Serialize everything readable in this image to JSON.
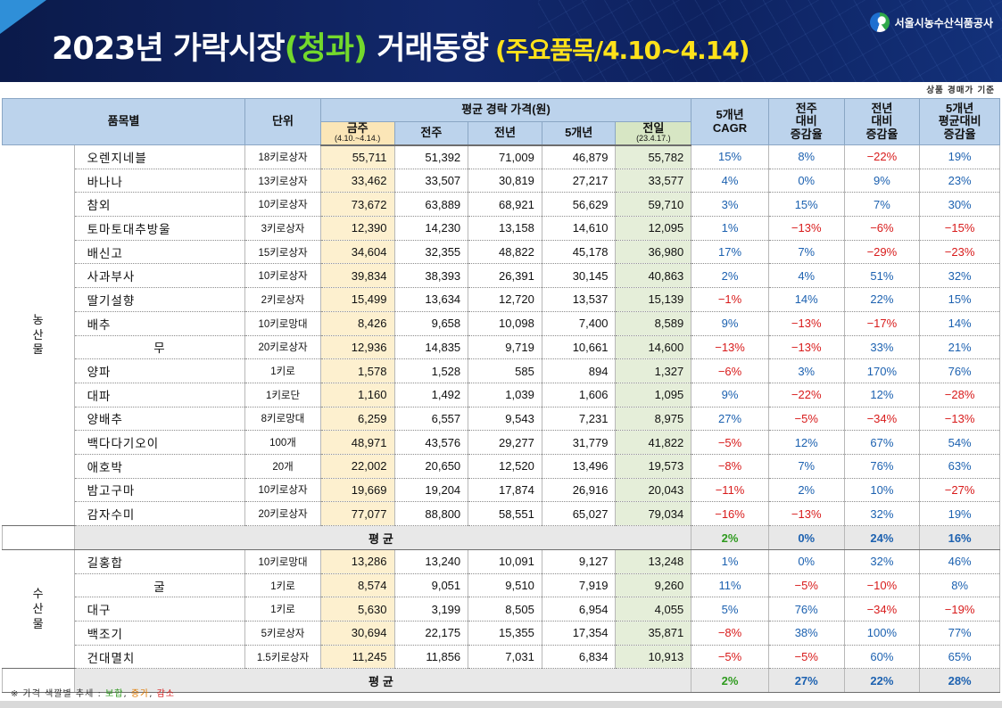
{
  "header": {
    "title_main": "2023년 가락시장",
    "title_hl": "(청과)",
    "title_rest": " 거래동향",
    "title_sub": "(주요품목/4.10~4.14)",
    "org_name": "서울시농수산식품공사"
  },
  "basis_note": "상품 경매가 기준",
  "table_header": {
    "item": "품목별",
    "unit": "단위",
    "avg_price": "평균 경락 가격(원)",
    "this_week": "금주",
    "this_week_range": "(4.10.~4.14.)",
    "prev_week": "전주",
    "prev_year": "전년",
    "five_year": "5개년",
    "prev_day": "전일",
    "prev_day_date": "(23.4.17.)",
    "cagr_1": "5개년",
    "cagr_2": "CAGR",
    "wow_1": "전주",
    "wow_2": "대비",
    "wow_3": "증감율",
    "yoy_1": "전년",
    "yoy_2": "대비",
    "yoy_3": "증감율",
    "vs5_1": "5개년",
    "vs5_2": "평균대비",
    "vs5_3": "증감율"
  },
  "groups": {
    "agri": "농\n산\n물",
    "fish": "수\n산\n물"
  },
  "agri_rows": [
    {
      "name": "오렌지네블",
      "unit": "18키로상자",
      "cur": "55,711",
      "pw": "51,392",
      "py": "71,009",
      "p5": "46,879",
      "pd": "55,782",
      "cagr": "15%",
      "wow": "8%",
      "yoy": "−22%",
      "vs5": "19%"
    },
    {
      "name": "바나나",
      "unit": "13키로상자",
      "cur": "33,462",
      "pw": "33,507",
      "py": "30,819",
      "p5": "27,217",
      "pd": "33,577",
      "cagr": "4%",
      "wow": "0%",
      "yoy": "9%",
      "vs5": "23%"
    },
    {
      "name": "참외",
      "unit": "10키로상자",
      "cur": "73,672",
      "pw": "63,889",
      "py": "68,921",
      "p5": "56,629",
      "pd": "59,710",
      "cagr": "3%",
      "wow": "15%",
      "yoy": "7%",
      "vs5": "30%"
    },
    {
      "name": "토마토대추방울",
      "unit": "3키로상자",
      "cur": "12,390",
      "pw": "14,230",
      "py": "13,158",
      "p5": "14,610",
      "pd": "12,095",
      "cagr": "1%",
      "wow": "−13%",
      "yoy": "−6%",
      "vs5": "−15%"
    },
    {
      "name": "배신고",
      "unit": "15키로상자",
      "cur": "34,604",
      "pw": "32,355",
      "py": "48,822",
      "p5": "45,178",
      "pd": "36,980",
      "cagr": "17%",
      "wow": "7%",
      "yoy": "−29%",
      "vs5": "−23%"
    },
    {
      "name": "사과부사",
      "unit": "10키로상자",
      "cur": "39,834",
      "pw": "38,393",
      "py": "26,391",
      "p5": "30,145",
      "pd": "40,863",
      "cagr": "2%",
      "wow": "4%",
      "yoy": "51%",
      "vs5": "32%"
    },
    {
      "name": "딸기설향",
      "unit": "2키로상자",
      "cur": "15,499",
      "pw": "13,634",
      "py": "12,720",
      "p5": "13,537",
      "pd": "15,139",
      "cagr": "−1%",
      "wow": "14%",
      "yoy": "22%",
      "vs5": "15%"
    },
    {
      "name": "배추",
      "unit": "10키로망대",
      "cur": "8,426",
      "pw": "9,658",
      "py": "10,098",
      "p5": "7,400",
      "pd": "8,589",
      "cagr": "9%",
      "wow": "−13%",
      "yoy": "−17%",
      "vs5": "14%"
    },
    {
      "name": "무",
      "unit": "20키로상자",
      "cur": "12,936",
      "pw": "14,835",
      "py": "9,719",
      "p5": "10,661",
      "pd": "14,600",
      "cagr": "−13%",
      "wow": "−13%",
      "yoy": "33%",
      "vs5": "21%"
    },
    {
      "name": "양파",
      "unit": "1키로",
      "cur": "1,578",
      "pw": "1,528",
      "py": "585",
      "p5": "894",
      "pd": "1,327",
      "cagr": "−6%",
      "wow": "3%",
      "yoy": "170%",
      "vs5": "76%"
    },
    {
      "name": "대파",
      "unit": "1키로단",
      "cur": "1,160",
      "pw": "1,492",
      "py": "1,039",
      "p5": "1,606",
      "pd": "1,095",
      "cagr": "9%",
      "wow": "−22%",
      "yoy": "12%",
      "vs5": "−28%"
    },
    {
      "name": "양배추",
      "unit": "8키로망대",
      "cur": "6,259",
      "pw": "6,557",
      "py": "9,543",
      "p5": "7,231",
      "pd": "8,975",
      "cagr": "27%",
      "wow": "−5%",
      "yoy": "−34%",
      "vs5": "−13%"
    },
    {
      "name": "백다다기오이",
      "unit": "100개",
      "cur": "48,971",
      "pw": "43,576",
      "py": "29,277",
      "p5": "31,779",
      "pd": "41,822",
      "cagr": "−5%",
      "wow": "12%",
      "yoy": "67%",
      "vs5": "54%"
    },
    {
      "name": "애호박",
      "unit": "20개",
      "cur": "22,002",
      "pw": "20,650",
      "py": "12,520",
      "p5": "13,496",
      "pd": "19,573",
      "cagr": "−8%",
      "wow": "7%",
      "yoy": "76%",
      "vs5": "63%"
    },
    {
      "name": "밤고구마",
      "unit": "10키로상자",
      "cur": "19,669",
      "pw": "19,204",
      "py": "17,874",
      "p5": "26,916",
      "pd": "20,043",
      "cagr": "−11%",
      "wow": "2%",
      "yoy": "10%",
      "vs5": "−27%"
    },
    {
      "name": "감자수미",
      "unit": "20키로상자",
      "cur": "77,077",
      "pw": "88,800",
      "py": "58,551",
      "p5": "65,027",
      "pd": "79,034",
      "cagr": "−16%",
      "wow": "−13%",
      "yoy": "32%",
      "vs5": "19%"
    }
  ],
  "agri_avg": {
    "label": "평균",
    "cagr": "2%",
    "wow": "0%",
    "yoy": "24%",
    "vs5": "16%"
  },
  "fish_rows": [
    {
      "name": "길홍합",
      "unit": "10키로망대",
      "cur": "13,286",
      "pw": "13,240",
      "py": "10,091",
      "p5": "9,127",
      "pd": "13,248",
      "cagr": "1%",
      "wow": "0%",
      "yoy": "32%",
      "vs5": "46%"
    },
    {
      "name": "굴",
      "unit": "1키로",
      "cur": "8,574",
      "pw": "9,051",
      "py": "9,510",
      "p5": "7,919",
      "pd": "9,260",
      "cagr": "11%",
      "wow": "−5%",
      "yoy": "−10%",
      "vs5": "8%"
    },
    {
      "name": "대구",
      "unit": "1키로",
      "cur": "5,630",
      "pw": "3,199",
      "py": "8,505",
      "p5": "6,954",
      "pd": "4,055",
      "cagr": "5%",
      "wow": "76%",
      "yoy": "−34%",
      "vs5": "−19%"
    },
    {
      "name": "백조기",
      "unit": "5키로상자",
      "cur": "30,694",
      "pw": "22,175",
      "py": "15,355",
      "p5": "17,354",
      "pd": "35,871",
      "cagr": "−8%",
      "wow": "38%",
      "yoy": "100%",
      "vs5": "77%"
    },
    {
      "name": "건대멸치",
      "unit": "1.5키로상자",
      "cur": "11,245",
      "pw": "11,856",
      "py": "7,031",
      "p5": "6,834",
      "pd": "10,913",
      "cagr": "−5%",
      "wow": "−5%",
      "yoy": "60%",
      "vs5": "65%"
    }
  ],
  "fish_avg": {
    "label": "평균",
    "cagr": "2%",
    "wow": "27%",
    "yoy": "22%",
    "vs5": "28%"
  },
  "legend": {
    "prefix": "※ 가격 색깔별 추세 : ",
    "flat": "보합",
    "sep1": ", ",
    "up": "증가",
    "sep2": ", ",
    "down": "감소"
  },
  "colors": {
    "increase": "#1c61b0",
    "decrease": "#d81b1b",
    "flat": "#2e7d32",
    "title_highlight": "#74d92c",
    "title_sub": "#ffe21a"
  }
}
